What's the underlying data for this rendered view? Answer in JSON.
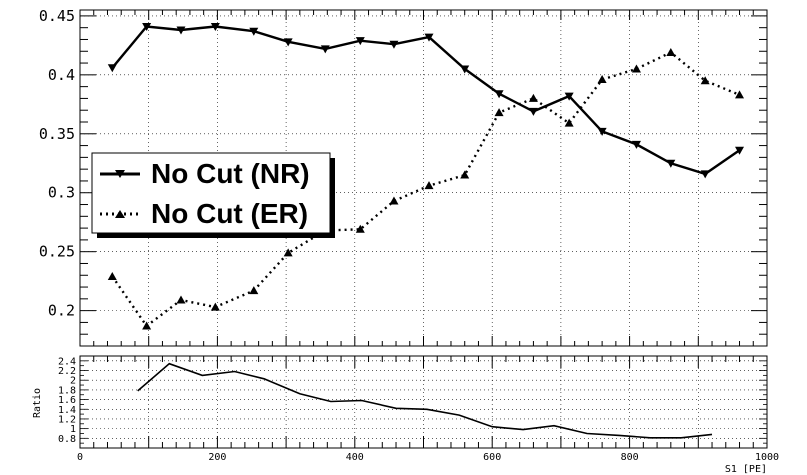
{
  "chart_data": [
    {
      "type": "line",
      "xlim": [
        0,
        1000
      ],
      "ylim": [
        0.17,
        0.455
      ],
      "yticks": [
        "0.45",
        "0.4",
        "0.35",
        "0.3",
        "0.25",
        "0.2"
      ],
      "ytick_values": [
        0.45,
        0.4,
        0.35,
        0.3,
        0.25,
        0.2
      ],
      "grid": true,
      "legend_position": "middle-left",
      "series": [
        {
          "name": "No Cut (NR)",
          "style": "solid",
          "marker": "triangle-down",
          "x": [
            47,
            97,
            147,
            197,
            253,
            303,
            357,
            408,
            457,
            508,
            560,
            610,
            660,
            712,
            760,
            810,
            860,
            910,
            960
          ],
          "y": [
            0.406,
            0.441,
            0.438,
            0.441,
            0.437,
            0.428,
            0.422,
            0.429,
            0.426,
            0.432,
            0.405,
            0.384,
            0.369,
            0.382,
            0.352,
            0.341,
            0.325,
            0.316,
            0.336
          ]
        },
        {
          "name": "No Cut (ER)",
          "style": "dotted",
          "marker": "triangle-up",
          "x": [
            47,
            97,
            147,
            197,
            253,
            303,
            357,
            408,
            457,
            508,
            560,
            610,
            660,
            712,
            760,
            810,
            860,
            910,
            960
          ],
          "y": [
            0.229,
            0.187,
            0.209,
            0.203,
            0.217,
            0.249,
            0.268,
            0.269,
            0.293,
            0.306,
            0.315,
            0.368,
            0.38,
            0.359,
            0.396,
            0.405,
            0.419,
            0.395,
            0.383
          ]
        }
      ]
    },
    {
      "type": "line",
      "ylabel": "Ratio",
      "xlabel": "S1 [PE]",
      "xlim": [
        0,
        1000
      ],
      "ylim": [
        0.6,
        2.5
      ],
      "xticks": [
        "0",
        "200",
        "400",
        "600",
        "800",
        "1000"
      ],
      "xtick_values": [
        0,
        200,
        400,
        600,
        800,
        1000
      ],
      "yticks": [
        "2.4",
        "2.2",
        "2",
        "1.8",
        "1.6",
        "1.4",
        "1.2",
        "1",
        "0.8"
      ],
      "ytick_values": [
        2.4,
        2.2,
        2.0,
        1.8,
        1.6,
        1.4,
        1.2,
        1.0,
        0.8
      ],
      "grid": true,
      "series": [
        {
          "style": "solid",
          "x": [
            84,
            130,
            178,
            225,
            268,
            320,
            365,
            410,
            460,
            505,
            552,
            600,
            645,
            690,
            738,
            785,
            830,
            875,
            920
          ],
          "y": [
            1.78,
            2.34,
            2.1,
            2.18,
            2.03,
            1.72,
            1.56,
            1.58,
            1.42,
            1.4,
            1.28,
            1.04,
            0.98,
            1.06,
            0.9,
            0.86,
            0.81,
            0.81,
            0.88
          ]
        }
      ]
    }
  ],
  "legend": {
    "entries": [
      "No Cut (NR)",
      "No Cut (ER)"
    ]
  }
}
